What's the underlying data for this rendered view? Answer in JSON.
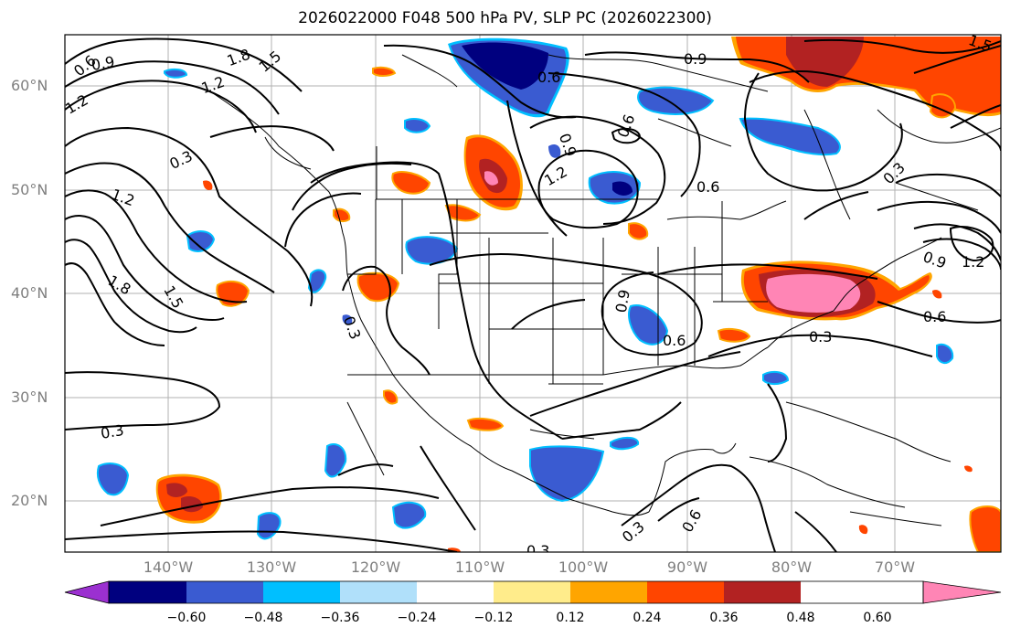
{
  "title": "2026022000 F048 500 hPa PV, SLP PC (2026022300)",
  "lat_labels": [
    "60°N",
    "50°N",
    "40°N",
    "30°N",
    "20°N"
  ],
  "lon_labels": [
    "140°W",
    "130°W",
    "120°W",
    "110°W",
    "100°W",
    "90°W",
    "80°W",
    "70°W"
  ],
  "colorbar": {
    "colors": [
      "#9b30d0",
      "#00007f",
      "#3a5bd1",
      "#00bfff",
      "#b0e0fa",
      "#ffffff",
      "#ffec8b",
      "#ffa500",
      "#ff4500",
      "#b22222",
      "#ff85b5"
    ],
    "tick_labels": [
      "−0.60",
      "−0.48",
      "−0.36",
      "−0.24",
      "−0.12",
      "0.12",
      "0.24",
      "0.36",
      "0.48",
      "0.60"
    ]
  },
  "contour_labels": [
    {
      "text": "0.6"
    },
    {
      "text": "0.9"
    },
    {
      "text": "1.2"
    },
    {
      "text": "1.8"
    },
    {
      "text": "1.5"
    },
    {
      "text": "1.2"
    },
    {
      "text": "0.3"
    },
    {
      "text": "1.2"
    },
    {
      "text": "1.8"
    },
    {
      "text": "1.5"
    },
    {
      "text": "0.6"
    },
    {
      "text": "0.9"
    },
    {
      "text": "0.9"
    },
    {
      "text": "1.2"
    },
    {
      "text": "0.6"
    },
    {
      "text": "0.3"
    },
    {
      "text": "0.9"
    },
    {
      "text": "1.2"
    },
    {
      "text": "0.6"
    },
    {
      "text": "0.9"
    },
    {
      "text": "0.6"
    },
    {
      "text": "0.3"
    },
    {
      "text": "0.3"
    },
    {
      "text": "0.3"
    },
    {
      "text": "0.6"
    },
    {
      "text": "0.3"
    },
    {
      "text": "0.3"
    },
    {
      "text": "1.5"
    },
    {
      "text": "0.6"
    }
  ]
}
